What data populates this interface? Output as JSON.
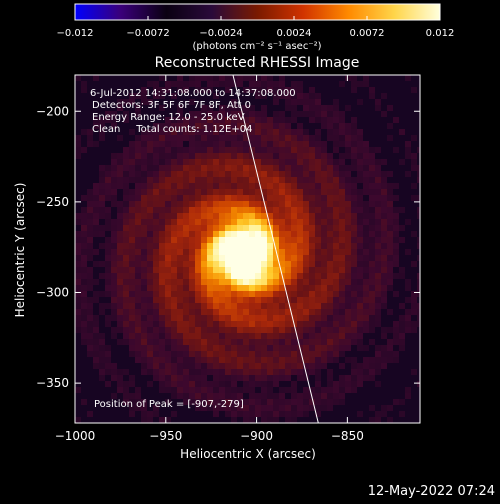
{
  "colorbar": {
    "tick_labels": [
      "−0.012",
      "−0.0072",
      "−0.0024",
      "0.0024",
      "0.0072",
      "0.012"
    ],
    "units": "(photons cm⁻² s⁻¹ asec⁻²)",
    "stops": [
      "#0000ff",
      "#3a007a",
      "#0a0012",
      "#2a0a3a",
      "#7a1a00",
      "#d13300",
      "#ff8a00",
      "#ffd54a",
      "#ffffdc"
    ]
  },
  "footer_timestamp": "12-May-2022 07:24",
  "chart_data": {
    "type": "heatmap",
    "title": "Reconstructed RHESSI Image",
    "xlabel": "Heliocentric X (arcsec)",
    "ylabel": "Heliocentric Y (arcsec)",
    "xlim": [
      -1000,
      -810
    ],
    "ylim": [
      -372,
      -180
    ],
    "x_ticks": [
      -1000,
      -950,
      -900,
      -850
    ],
    "x_tick_labels": [
      "−1000",
      "−950",
      "−900",
      "−850"
    ],
    "y_ticks": [
      -200,
      -250,
      -300,
      -350
    ],
    "y_tick_labels": [
      "−200",
      "−250",
      "−300",
      "−350"
    ],
    "color_range": [
      -0.012,
      0.012
    ],
    "annotations": {
      "time_range": "6-Jul-2012 14:31:08.000 to 14:37:08.000",
      "detectors": "Detectors: 3F 5F 6F 7F 8F, Att 0",
      "energy_range": "Energy Range: 12.0 - 25.0 keV",
      "method": "Clean     Total counts: 1.12E+04",
      "peak": "Position of Peak = [-907,-279]"
    },
    "peak": {
      "x": -907,
      "y": -279
    },
    "limb": [
      [
        -913,
        -180
      ],
      [
        -866,
        -372
      ]
    ]
  }
}
